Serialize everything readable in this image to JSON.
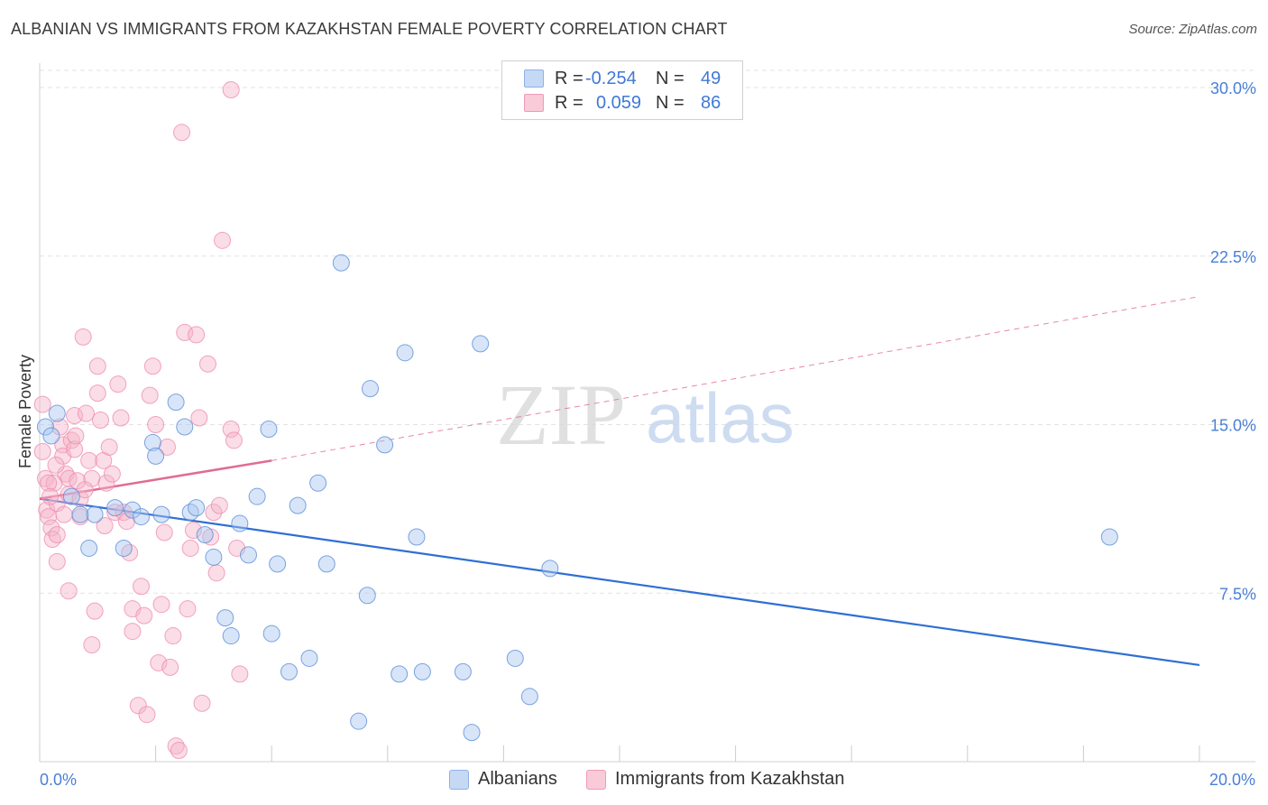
{
  "title": "ALBANIAN VS IMMIGRANTS FROM KAZAKHSTAN FEMALE POVERTY CORRELATION CHART",
  "source": "Source: ZipAtlas.com",
  "watermark": {
    "zip": "ZIP",
    "atlas": "atlas"
  },
  "legend": {
    "rows": [
      {
        "r_label": "R =",
        "r_value": "-0.254",
        "n_label": "N =",
        "n_value": "49",
        "color": "#a9c6f0"
      },
      {
        "r_label": "R =",
        "r_value": "0.059",
        "n_label": "N =",
        "n_value": "86",
        "color": "#f5b4c8"
      }
    ]
  },
  "bottom_legend": [
    "Albanians",
    "Immigrants from Kazakhstan"
  ],
  "chart_data": {
    "type": "scatter",
    "title": "ALBANIAN VS IMMIGRANTS FROM KAZAKHSTAN FEMALE POVERTY CORRELATION CHART",
    "xlabel": "",
    "ylabel": "Female Poverty",
    "xlim": [
      0,
      20
    ],
    "ylim": [
      0,
      31
    ],
    "x_ticks": [
      {
        "value": 0,
        "label": "0.0%"
      },
      {
        "value": 20,
        "label": "20.0%"
      }
    ],
    "y_ticks": [
      {
        "value": 7.5,
        "label": "7.5%"
      },
      {
        "value": 15,
        "label": "15.0%"
      },
      {
        "value": 22.5,
        "label": "22.5%"
      },
      {
        "value": 30,
        "label": "30.0%"
      }
    ],
    "grid": true,
    "legend_position": "top-center",
    "series": [
      {
        "name": "Albanians",
        "color": "#5b8fd9",
        "fill": "#a9c6f0",
        "trend": {
          "x": [
            0,
            20
          ],
          "y": [
            11.7,
            4.3
          ],
          "style": "solid",
          "color": "#2f6fd3"
        },
        "points": [
          [
            0.1,
            14.9
          ],
          [
            0.3,
            15.5
          ],
          [
            0.55,
            11.8
          ],
          [
            0.7,
            11.0
          ],
          [
            0.85,
            9.5
          ],
          [
            0.95,
            11.0
          ],
          [
            1.3,
            11.3
          ],
          [
            1.45,
            9.5
          ],
          [
            1.6,
            11.2
          ],
          [
            1.75,
            10.9
          ],
          [
            1.95,
            14.2
          ],
          [
            2.0,
            13.6
          ],
          [
            2.35,
            16.0
          ],
          [
            2.5,
            14.9
          ],
          [
            2.6,
            11.1
          ],
          [
            2.7,
            11.3
          ],
          [
            2.85,
            10.1
          ],
          [
            3.0,
            9.1
          ],
          [
            3.2,
            6.4
          ],
          [
            3.3,
            5.6
          ],
          [
            3.45,
            10.6
          ],
          [
            3.6,
            9.2
          ],
          [
            3.75,
            11.8
          ],
          [
            3.95,
            14.8
          ],
          [
            4.0,
            5.7
          ],
          [
            4.1,
            8.8
          ],
          [
            4.3,
            4.0
          ],
          [
            4.45,
            11.4
          ],
          [
            4.65,
            4.6
          ],
          [
            4.8,
            12.4
          ],
          [
            4.95,
            8.8
          ],
          [
            5.2,
            22.2
          ],
          [
            5.5,
            1.8
          ],
          [
            5.65,
            7.4
          ],
          [
            5.7,
            16.6
          ],
          [
            5.95,
            14.1
          ],
          [
            6.2,
            3.9
          ],
          [
            6.3,
            18.2
          ],
          [
            6.5,
            10.0
          ],
          [
            6.6,
            4.0
          ],
          [
            7.3,
            4.0
          ],
          [
            7.45,
            1.3
          ],
          [
            7.6,
            18.6
          ],
          [
            8.2,
            4.6
          ],
          [
            8.45,
            2.9
          ],
          [
            8.8,
            8.6
          ],
          [
            18.45,
            10.0
          ],
          [
            0.2,
            14.5
          ],
          [
            2.1,
            11.0
          ]
        ]
      },
      {
        "name": "Immigrants from Kazakhstan",
        "color": "#f08db0",
        "fill": "#f5b4c8",
        "trend": {
          "x": [
            0,
            4.0,
            20
          ],
          "y": [
            11.7,
            13.4,
            20.7
          ],
          "style": "solid-then-dashed",
          "color": "#e06b96"
        },
        "points": [
          [
            0.05,
            15.9
          ],
          [
            0.05,
            13.8
          ],
          [
            0.1,
            12.6
          ],
          [
            0.12,
            11.2
          ],
          [
            0.15,
            10.9
          ],
          [
            0.2,
            10.4
          ],
          [
            0.22,
            9.9
          ],
          [
            0.25,
            12.4
          ],
          [
            0.3,
            11.5
          ],
          [
            0.3,
            10.1
          ],
          [
            0.3,
            8.9
          ],
          [
            0.35,
            14.9
          ],
          [
            0.4,
            14.1
          ],
          [
            0.4,
            13.6
          ],
          [
            0.45,
            12.8
          ],
          [
            0.5,
            12.6
          ],
          [
            0.5,
            11.9
          ],
          [
            0.5,
            7.6
          ],
          [
            0.55,
            14.3
          ],
          [
            0.6,
            15.4
          ],
          [
            0.6,
            13.9
          ],
          [
            0.65,
            12.5
          ],
          [
            0.7,
            11.7
          ],
          [
            0.7,
            10.9
          ],
          [
            0.75,
            18.9
          ],
          [
            0.8,
            15.5
          ],
          [
            0.85,
            13.4
          ],
          [
            0.9,
            12.6
          ],
          [
            0.9,
            5.2
          ],
          [
            0.95,
            6.7
          ],
          [
            1.0,
            16.4
          ],
          [
            1.0,
            17.6
          ],
          [
            1.05,
            15.2
          ],
          [
            1.1,
            13.4
          ],
          [
            1.15,
            12.4
          ],
          [
            1.2,
            14.0
          ],
          [
            1.25,
            12.8
          ],
          [
            1.3,
            11.1
          ],
          [
            1.35,
            16.8
          ],
          [
            1.4,
            15.3
          ],
          [
            1.45,
            11.1
          ],
          [
            1.5,
            10.7
          ],
          [
            1.55,
            9.3
          ],
          [
            1.6,
            6.8
          ],
          [
            1.6,
            5.8
          ],
          [
            1.7,
            2.5
          ],
          [
            1.75,
            7.8
          ],
          [
            1.8,
            6.5
          ],
          [
            1.85,
            2.1
          ],
          [
            1.9,
            16.3
          ],
          [
            1.95,
            17.6
          ],
          [
            2.0,
            15.0
          ],
          [
            2.05,
            4.4
          ],
          [
            2.1,
            7.0
          ],
          [
            2.15,
            10.2
          ],
          [
            2.2,
            14.0
          ],
          [
            2.25,
            4.2
          ],
          [
            2.3,
            5.6
          ],
          [
            2.35,
            0.7
          ],
          [
            2.4,
            0.5
          ],
          [
            2.45,
            28.0
          ],
          [
            2.5,
            19.1
          ],
          [
            2.55,
            6.8
          ],
          [
            2.6,
            9.5
          ],
          [
            2.65,
            10.3
          ],
          [
            2.7,
            19.0
          ],
          [
            2.75,
            15.3
          ],
          [
            2.8,
            2.6
          ],
          [
            2.9,
            17.7
          ],
          [
            2.95,
            10.0
          ],
          [
            3.0,
            11.1
          ],
          [
            3.05,
            8.4
          ],
          [
            3.1,
            11.4
          ],
          [
            3.15,
            23.2
          ],
          [
            3.3,
            14.8
          ],
          [
            3.35,
            14.3
          ],
          [
            3.4,
            9.5
          ],
          [
            3.45,
            3.9
          ],
          [
            3.3,
            29.9
          ],
          [
            0.15,
            12.4
          ],
          [
            0.18,
            11.8
          ],
          [
            0.28,
            13.2
          ],
          [
            0.42,
            11.0
          ],
          [
            0.62,
            14.5
          ],
          [
            0.78,
            12.1
          ],
          [
            1.12,
            10.5
          ]
        ]
      }
    ]
  }
}
